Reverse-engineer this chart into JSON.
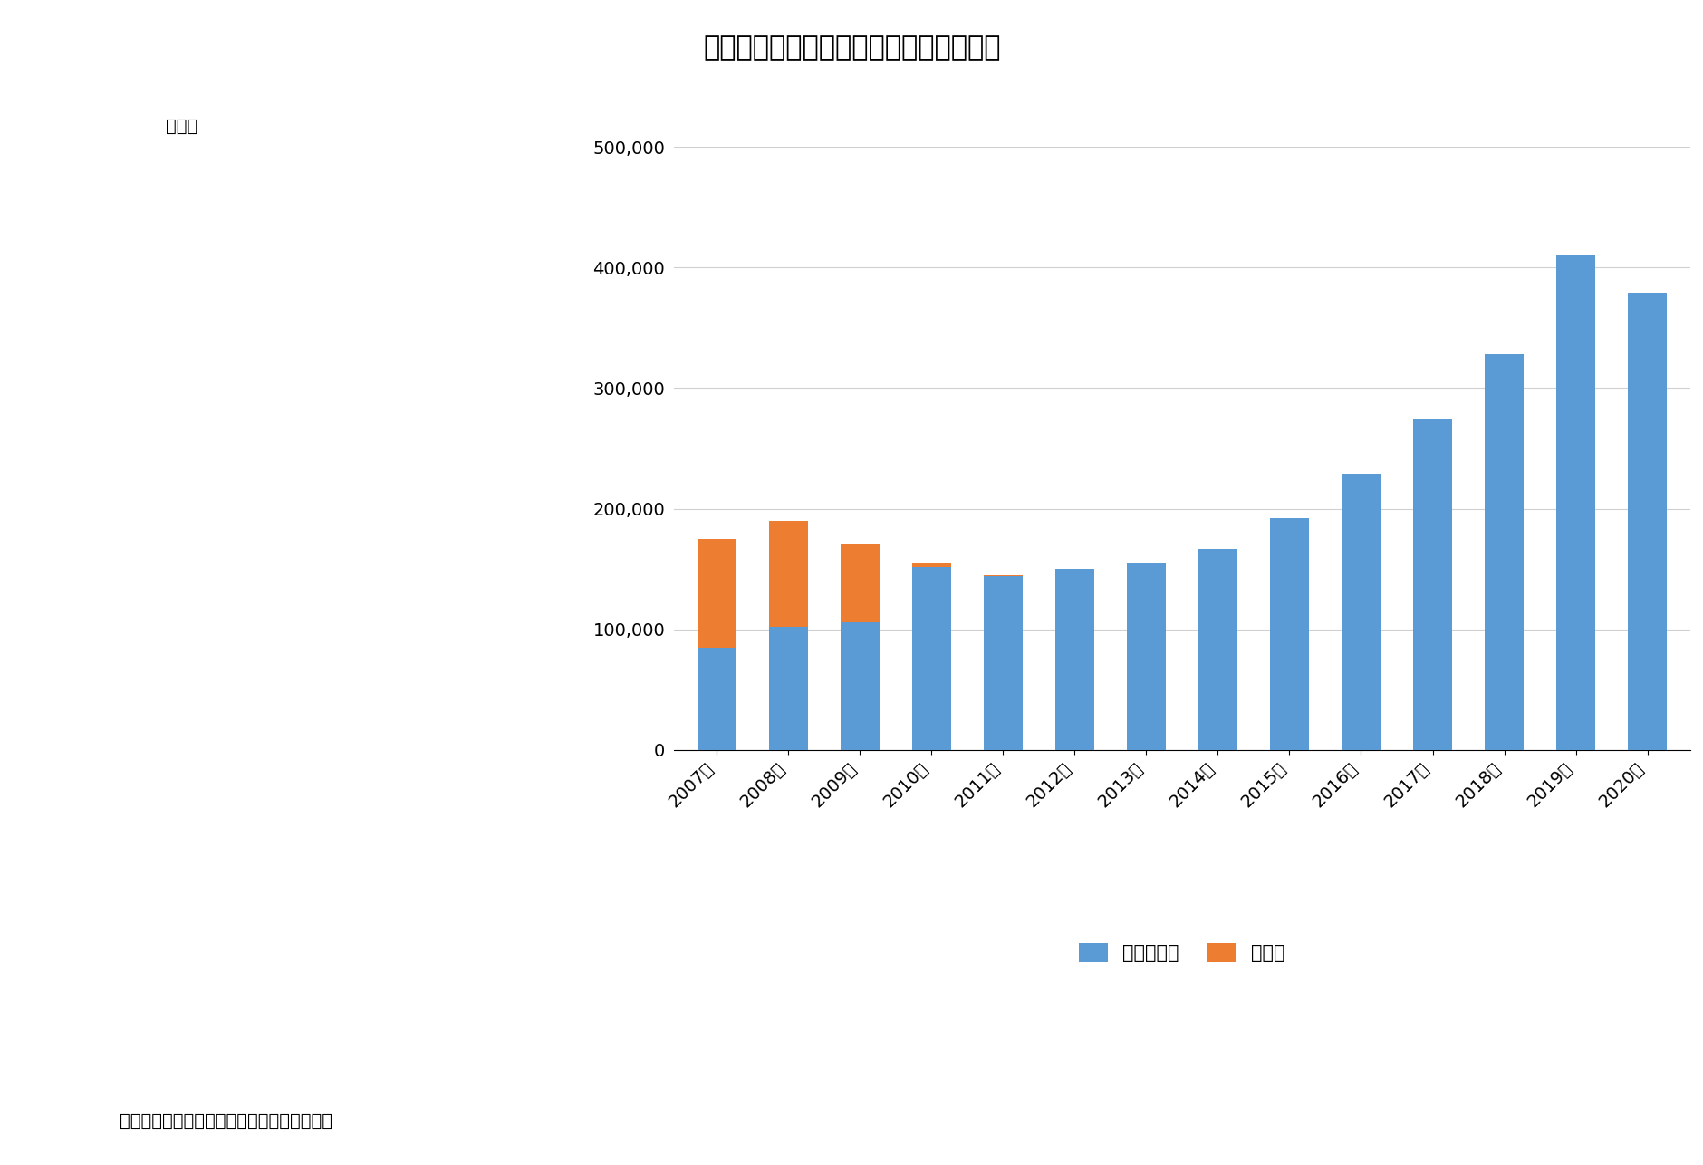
{
  "title": "図表２　研修生・技能実習生の在留状況",
  "ylabel": "（人）",
  "source_text": "（資料）　法務省のデータをもとに筆者作成",
  "years": [
    "2007年",
    "2008年",
    "2009年",
    "2010年",
    "2011年",
    "2012年",
    "2013年",
    "2014年",
    "2015年",
    "2016年",
    "2017年",
    "2018年",
    "2019年",
    "2020年"
  ],
  "ginou_jisshusei": [
    85000,
    102000,
    106000,
    152000,
    144000,
    150000,
    155000,
    167000,
    192000,
    229000,
    275000,
    328000,
    411000,
    379000
  ],
  "kenshuset": [
    90000,
    88000,
    65000,
    3000,
    1000,
    0,
    0,
    0,
    0,
    0,
    0,
    0,
    0,
    0
  ],
  "bar_color_blue": "#5B9BD5",
  "bar_color_orange": "#ED7D31",
  "ylim": [
    0,
    500000
  ],
  "yticks": [
    0,
    100000,
    200000,
    300000,
    400000,
    500000
  ],
  "ytick_labels": [
    "0",
    "100,000",
    "200,000",
    "300,000",
    "400,000",
    "500,000"
  ],
  "legend_labels": [
    "技能実習生",
    "研修生"
  ],
  "background_color": "#ffffff",
  "grid_color": "#d0d0d0",
  "title_fontsize": 22,
  "label_fontsize": 14,
  "tick_fontsize": 14,
  "legend_fontsize": 15
}
